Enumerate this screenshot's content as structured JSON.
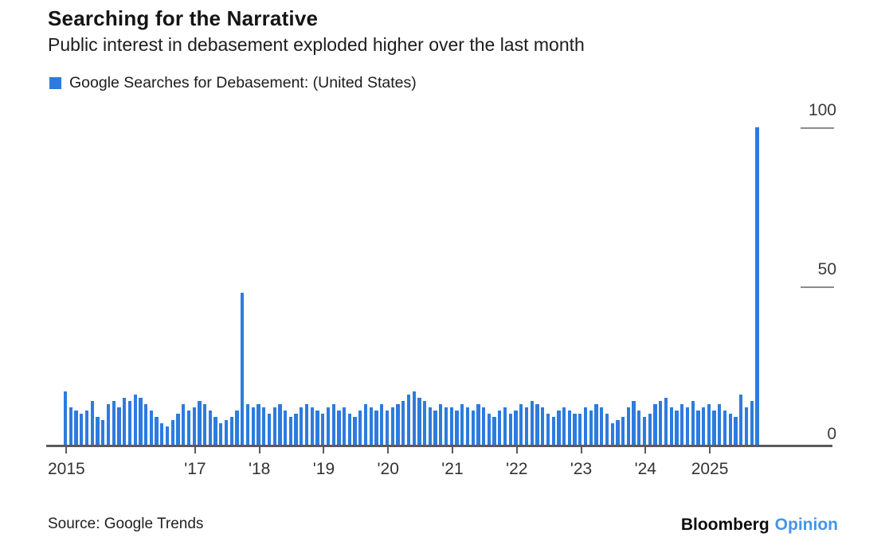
{
  "header": {
    "title": "Searching for the Narrative",
    "subtitle": "Public interest in debasement exploded higher over the last month"
  },
  "legend": {
    "label": "Google Searches for Debasement: (United States)",
    "swatch_color": "#2e7bde"
  },
  "footer": {
    "source": "Source: Google Trends",
    "brand_name": "Bloomberg",
    "brand_unit": "Opinion",
    "brand_unit_color": "#4595e8"
  },
  "chart_data": {
    "type": "bar",
    "title": "Searching for the Narrative",
    "subtitle": "Public interest in debasement exploded higher over the last month",
    "series_name": "Google Searches for Debasement: (United States)",
    "frequency": "monthly",
    "x_start": "2015-01",
    "x_end": "2025-10",
    "values": [
      17,
      12,
      11,
      10,
      11,
      14,
      9,
      8,
      13,
      14,
      12,
      15,
      14,
      16,
      15,
      13,
      11,
      9,
      7,
      6,
      8,
      10,
      13,
      11,
      12,
      14,
      13,
      11,
      9,
      7,
      8,
      9,
      11,
      48,
      13,
      12,
      13,
      12,
      10,
      12,
      13,
      11,
      9,
      10,
      12,
      13,
      12,
      11,
      10,
      12,
      13,
      11,
      12,
      10,
      9,
      11,
      13,
      12,
      11,
      13,
      11,
      12,
      13,
      14,
      16,
      17,
      15,
      14,
      12,
      11,
      13,
      12,
      12,
      11,
      13,
      12,
      11,
      13,
      12,
      10,
      9,
      11,
      12,
      10,
      11,
      13,
      12,
      14,
      13,
      12,
      10,
      9,
      11,
      12,
      11,
      10,
      10,
      12,
      11,
      13,
      12,
      10,
      7,
      8,
      9,
      12,
      14,
      11,
      9,
      10,
      13,
      14,
      15,
      12,
      11,
      13,
      12,
      14,
      11,
      12,
      13,
      11,
      13,
      11,
      10,
      9,
      16,
      12,
      14,
      100
    ],
    "highlights": {
      "oct_2017_spike": 48,
      "oct_2025_spike": 100
    },
    "ylim": [
      0,
      100
    ],
    "y_ticks": [
      0,
      50,
      100
    ],
    "y_axis_side": "right",
    "x_tick_labels": [
      {
        "label": "2015",
        "month_index": 0
      },
      {
        "label": "'17",
        "month_index": 24
      },
      {
        "label": "'18",
        "month_index": 36
      },
      {
        "label": "'19",
        "month_index": 48
      },
      {
        "label": "'20",
        "month_index": 60
      },
      {
        "label": "'21",
        "month_index": 72
      },
      {
        "label": "'22",
        "month_index": 84
      },
      {
        "label": "'23",
        "month_index": 96
      },
      {
        "label": "'24",
        "month_index": 108
      },
      {
        "label": "2025",
        "month_index": 120
      }
    ],
    "bar_color": "#2e7bde",
    "grid": false,
    "legend_position": "top-left"
  }
}
